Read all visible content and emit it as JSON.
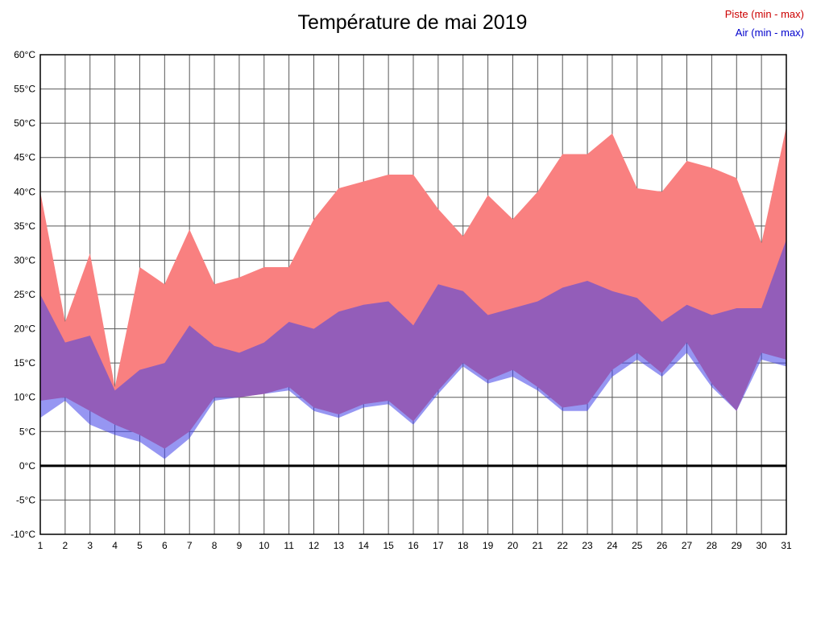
{
  "title": "Température de mai 2019",
  "legend": {
    "piste": {
      "label": "Piste (min - max)",
      "color": "#cc0000"
    },
    "air": {
      "label": "Air (min - max)",
      "color": "#0000cc"
    }
  },
  "chart_data": {
    "type": "area",
    "title": "Température de mai 2019",
    "xlabel": "",
    "ylabel": "°C",
    "x": [
      1,
      2,
      3,
      4,
      5,
      6,
      7,
      8,
      9,
      10,
      11,
      12,
      13,
      14,
      15,
      16,
      17,
      18,
      19,
      20,
      21,
      22,
      23,
      24,
      25,
      26,
      27,
      28,
      29,
      30,
      31
    ],
    "series": [
      {
        "name": "Piste max",
        "values": [
          40,
          21,
          31,
          11.5,
          29,
          26.5,
          34.5,
          26.5,
          27.5,
          29,
          29,
          36,
          40.5,
          41.5,
          42.5,
          42.5,
          37.5,
          33.5,
          39.5,
          36,
          40,
          45.5,
          45.5,
          48.5,
          40.5,
          40,
          44.5,
          43.5,
          42,
          32.5,
          49.5
        ]
      },
      {
        "name": "Piste min",
        "values": [
          9.5,
          10,
          8,
          6,
          4.5,
          2.5,
          5,
          10,
          10,
          10.5,
          11.5,
          8.5,
          7.5,
          9,
          9.5,
          6.5,
          11,
          15,
          12.5,
          14,
          11.5,
          8.5,
          9,
          14,
          16.5,
          13.5,
          18,
          12,
          8,
          16.5,
          15.5
        ]
      },
      {
        "name": "Air max",
        "values": [
          25,
          18,
          19,
          11,
          14,
          15,
          20.5,
          17.5,
          16.5,
          18,
          21,
          20,
          22.5,
          23.5,
          24,
          20.5,
          26.5,
          25.5,
          22,
          23,
          24,
          26,
          27,
          25.5,
          24.5,
          21,
          23.5,
          22,
          23,
          23,
          33
        ]
      },
      {
        "name": "Air min",
        "values": [
          7,
          9.5,
          6,
          4.5,
          3.5,
          1,
          4,
          9.5,
          10,
          10.5,
          11,
          8,
          7,
          8.5,
          9,
          6,
          10.5,
          14.5,
          12,
          13,
          11,
          8,
          8,
          13,
          15.5,
          13,
          16.5,
          11.5,
          8,
          15.5,
          14.5
        ]
      }
    ],
    "ylim": [
      -10,
      60
    ],
    "ytick_step": 5,
    "ytick_suffix": "°C",
    "grid": true,
    "legend_position": "top-right",
    "zero_line": true,
    "colors": {
      "piste_fill": "#f98080",
      "air_fill": "rgba(64,64,232,0.55)",
      "grid_line": "#595959",
      "zero_line": "#000000",
      "border": "#000000"
    }
  }
}
